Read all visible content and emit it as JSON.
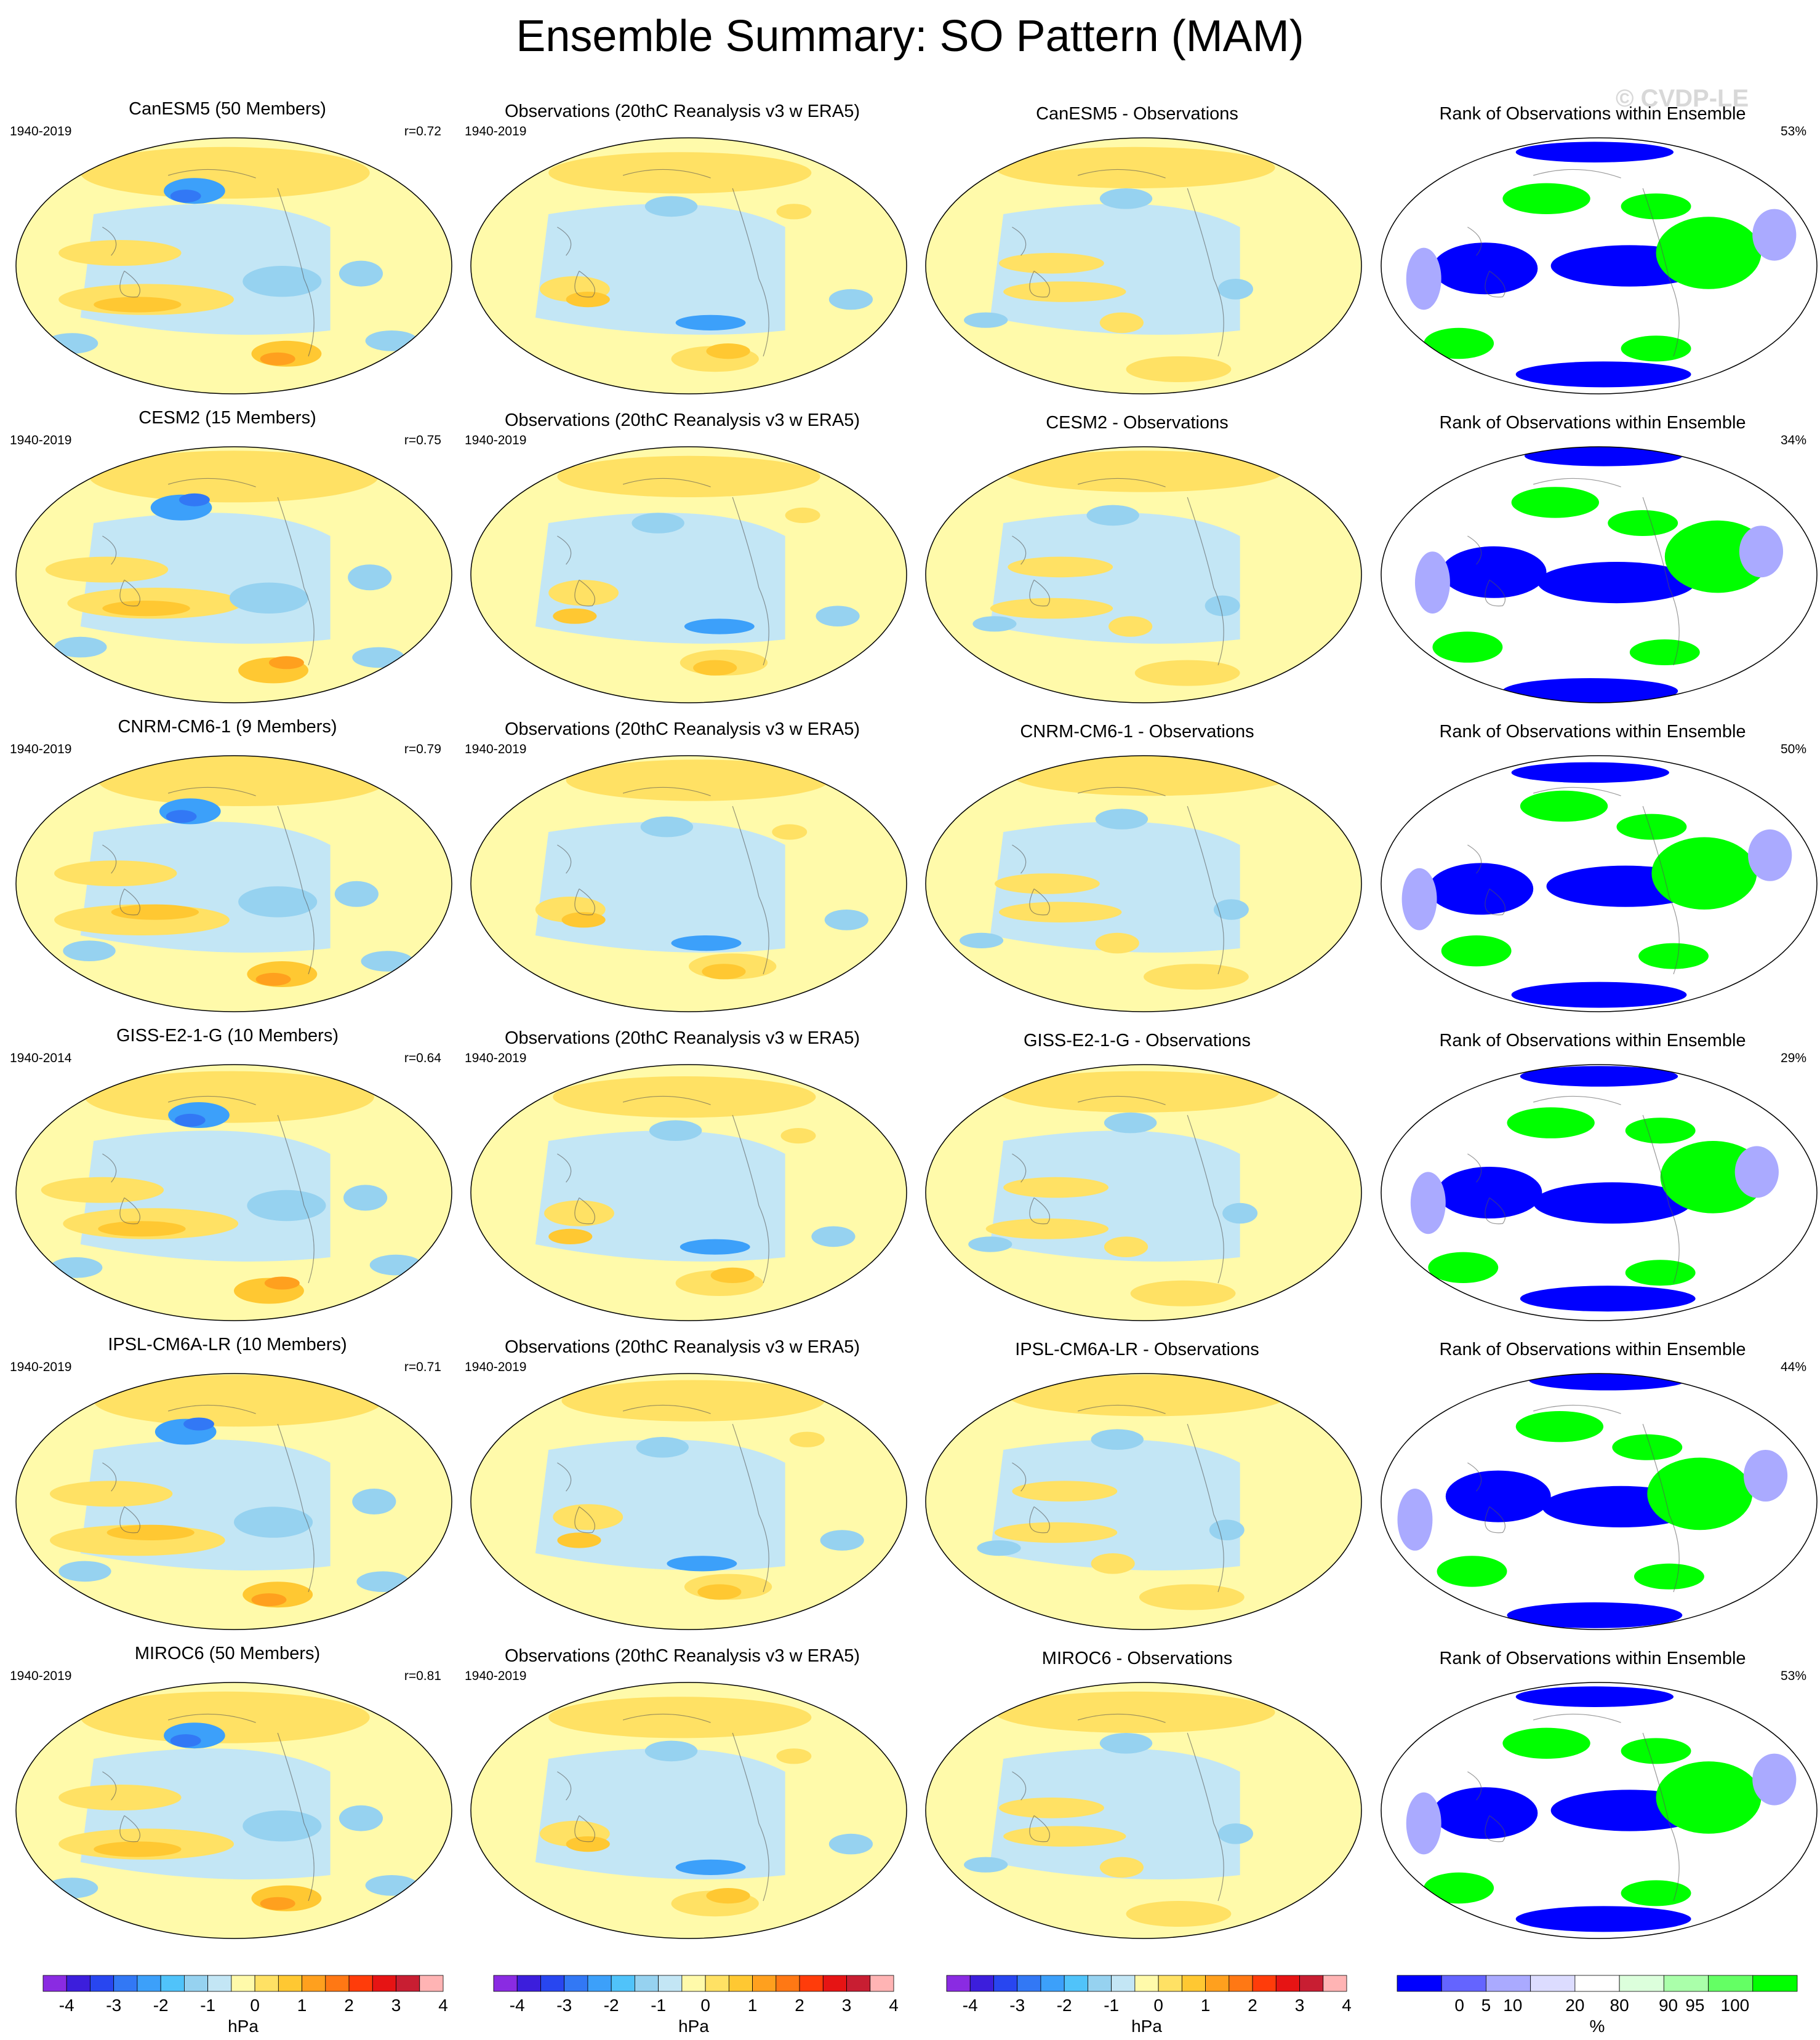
{
  "title": "Ensemble Summary: SO Pattern (MAM)",
  "watermark": "© CVDP-LE",
  "colors": {
    "diverging": [
      "#8a2be2",
      "#3c1edc",
      "#2846f0",
      "#3278f5",
      "#3ca0fa",
      "#50c3fa",
      "#96d2f0",
      "#c3e6f5",
      "#fffaaa",
      "#ffe164",
      "#ffc832",
      "#ffa01e",
      "#ff7814",
      "#ff3c0a",
      "#e61414",
      "#c81e32",
      "#ffb4b4"
    ],
    "rank": [
      "#0000ff",
      "#6464ff",
      "#aaaaff",
      "#dcdcff",
      "#ffffff",
      "#dcffdc",
      "#aaffaa",
      "#64ff64",
      "#00ff00"
    ],
    "outline": "#000000"
  },
  "rows": [
    {
      "model": {
        "title": "CanESM5 (50 Members)",
        "years": "1940-2019",
        "stat": "r=0.72"
      },
      "obs": {
        "title": "Observations (20thC Reanalysis v3 w ERA5)",
        "years": "1940-2019"
      },
      "diff": {
        "title": "CanESM5 - Observations"
      },
      "rank": {
        "title": "Rank of Observations within Ensemble",
        "stat": "53%"
      }
    },
    {
      "model": {
        "title": "CESM2 (15 Members)",
        "years": "1940-2019",
        "stat": "r=0.75"
      },
      "obs": {
        "title": "Observations (20thC Reanalysis v3 w ERA5)",
        "years": "1940-2019"
      },
      "diff": {
        "title": "CESM2 - Observations"
      },
      "rank": {
        "title": "Rank of Observations within Ensemble",
        "stat": "34%"
      }
    },
    {
      "model": {
        "title": "CNRM-CM6-1 (9 Members)",
        "years": "1940-2019",
        "stat": "r=0.79"
      },
      "obs": {
        "title": "Observations (20thC Reanalysis v3 w ERA5)",
        "years": "1940-2019"
      },
      "diff": {
        "title": "CNRM-CM6-1 - Observations"
      },
      "rank": {
        "title": "Rank of Observations within Ensemble",
        "stat": "50%"
      }
    },
    {
      "model": {
        "title": "GISS-E2-1-G (10 Members)",
        "years": "1940-2014",
        "stat": "r=0.64"
      },
      "obs": {
        "title": "Observations (20thC Reanalysis v3 w ERA5)",
        "years": "1940-2019"
      },
      "diff": {
        "title": "GISS-E2-1-G - Observations"
      },
      "rank": {
        "title": "Rank of Observations within Ensemble",
        "stat": "29%"
      }
    },
    {
      "model": {
        "title": "IPSL-CM6A-LR (10 Members)",
        "years": "1940-2019",
        "stat": "r=0.71"
      },
      "obs": {
        "title": "Observations (20thC Reanalysis v3 w ERA5)",
        "years": "1940-2019"
      },
      "diff": {
        "title": "IPSL-CM6A-LR - Observations"
      },
      "rank": {
        "title": "Rank of Observations within Ensemble",
        "stat": "44%"
      }
    },
    {
      "model": {
        "title": "MIROC6 (50 Members)",
        "years": "1940-2019",
        "stat": "r=0.81"
      },
      "obs": {
        "title": "Observations (20thC Reanalysis v3 w ERA5)",
        "years": "1940-2019"
      },
      "diff": {
        "title": "MIROC6 - Observations"
      },
      "rank": {
        "title": "Rank of Observations within Ensemble",
        "stat": "53%"
      }
    }
  ],
  "colorbars": [
    {
      "unit": "hPa",
      "ticks": [
        "-4",
        "-3",
        "-2",
        "-1",
        "0",
        "1",
        "2",
        "3",
        "4"
      ]
    },
    {
      "unit": "hPa",
      "ticks": [
        "-4",
        "-3",
        "-2",
        "-1",
        "0",
        "1",
        "2",
        "3",
        "4"
      ]
    },
    {
      "unit": "hPa",
      "ticks": [
        "-4",
        "-3",
        "-2",
        "-1",
        "0",
        "1",
        "2",
        "3",
        "4"
      ]
    },
    {
      "unit": "%",
      "ticks": [
        "0",
        "5",
        "10",
        "20",
        "80",
        "90",
        "95",
        "100"
      ]
    }
  ]
}
